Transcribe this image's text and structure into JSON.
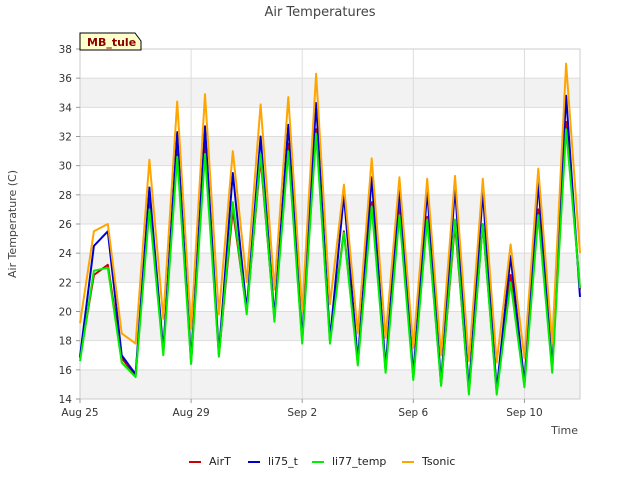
{
  "chart_data": {
    "type": "line",
    "title": "Air Temperatures",
    "xlabel": "Time",
    "ylabel": "Air Temperature (C)",
    "site_label": "MB_tule",
    "x_ticks": [
      "Aug 25",
      "Aug 29",
      "Sep 2",
      "Sep 6",
      "Sep 10"
    ],
    "y_ticks": [
      14,
      16,
      18,
      20,
      22,
      24,
      26,
      28,
      30,
      32,
      34,
      36,
      38
    ],
    "xlim": [
      "2024-08-25",
      "2024-09-12"
    ],
    "ylim": [
      14,
      38
    ],
    "grid": true,
    "legend_position": "bottom",
    "colors": {
      "AirT": "#cc0000",
      "li75_t": "#0000cc",
      "li77_temp": "#00ee00",
      "Tsonic": "#ffa500"
    },
    "series": [
      {
        "name": "AirT",
        "points": [
          [
            "2024-08-25",
            16.8
          ],
          [
            "2024-08-25T12:00",
            22.5
          ],
          [
            "2024-08-26",
            23.2
          ],
          [
            "2024-08-26T12:00",
            16.8
          ],
          [
            "2024-08-27",
            15.6
          ],
          [
            "2024-08-27T12:00",
            27.5
          ],
          [
            "2024-08-28",
            17.2
          ],
          [
            "2024-08-28T12:00",
            31.5
          ],
          [
            "2024-08-29",
            16.5
          ],
          [
            "2024-08-29T12:00",
            31.5
          ],
          [
            "2024-08-30",
            17.0
          ],
          [
            "2024-08-30T12:00",
            27.0
          ],
          [
            "2024-08-31",
            20.0
          ],
          [
            "2024-08-31T12:00",
            30.5
          ],
          [
            "2024-09-01",
            19.5
          ],
          [
            "2024-09-01T12:00",
            31.5
          ],
          [
            "2024-09-02",
            18.0
          ],
          [
            "2024-09-02T12:00",
            32.5
          ],
          [
            "2024-09-03",
            18.0
          ],
          [
            "2024-09-03T12:00",
            25.5
          ],
          [
            "2024-09-04",
            16.5
          ],
          [
            "2024-09-04T12:00",
            27.5
          ],
          [
            "2024-09-05",
            16.0
          ],
          [
            "2024-09-05T12:00",
            27.5
          ],
          [
            "2024-09-06",
            15.5
          ],
          [
            "2024-09-06T12:00",
            26.5
          ],
          [
            "2024-09-07",
            15.0
          ],
          [
            "2024-09-07T12:00",
            26.0
          ],
          [
            "2024-09-08",
            14.5
          ],
          [
            "2024-09-08T12:00",
            26.0
          ],
          [
            "2024-09-09",
            14.5
          ],
          [
            "2024-09-09T12:00",
            22.5
          ],
          [
            "2024-09-10",
            15.0
          ],
          [
            "2024-09-10T12:00",
            27.0
          ],
          [
            "2024-09-11",
            16.0
          ],
          [
            "2024-09-11T12:00",
            33.0
          ],
          [
            "2024-09-12",
            21.5
          ]
        ]
      },
      {
        "name": "li75_t",
        "points": [
          [
            "2024-08-25",
            16.9
          ],
          [
            "2024-08-25T12:00",
            24.5
          ],
          [
            "2024-08-26",
            25.5
          ],
          [
            "2024-08-26T12:00",
            17.0
          ],
          [
            "2024-08-27",
            15.7
          ],
          [
            "2024-08-27T12:00",
            28.5
          ],
          [
            "2024-08-28",
            17.3
          ],
          [
            "2024-08-28T12:00",
            32.3
          ],
          [
            "2024-08-29",
            16.6
          ],
          [
            "2024-08-29T12:00",
            32.7
          ],
          [
            "2024-08-30",
            17.1
          ],
          [
            "2024-08-30T12:00",
            29.5
          ],
          [
            "2024-08-31",
            20.1
          ],
          [
            "2024-08-31T12:00",
            32.0
          ],
          [
            "2024-09-01",
            19.6
          ],
          [
            "2024-09-01T12:00",
            32.8
          ],
          [
            "2024-09-02",
            18.1
          ],
          [
            "2024-09-02T12:00",
            34.3
          ],
          [
            "2024-09-03",
            18.1
          ],
          [
            "2024-09-03T12:00",
            28.0
          ],
          [
            "2024-09-04",
            16.6
          ],
          [
            "2024-09-04T12:00",
            29.2
          ],
          [
            "2024-09-05",
            16.1
          ],
          [
            "2024-09-05T12:00",
            28.5
          ],
          [
            "2024-09-06",
            15.6
          ],
          [
            "2024-09-06T12:00",
            28.3
          ],
          [
            "2024-09-07",
            15.1
          ],
          [
            "2024-09-07T12:00",
            28.5
          ],
          [
            "2024-09-08",
            14.6
          ],
          [
            "2024-09-08T12:00",
            28.2
          ],
          [
            "2024-09-09",
            14.6
          ],
          [
            "2024-09-09T12:00",
            23.8
          ],
          [
            "2024-09-10",
            15.1
          ],
          [
            "2024-09-10T12:00",
            28.8
          ],
          [
            "2024-09-11",
            16.1
          ],
          [
            "2024-09-11T12:00",
            34.8
          ],
          [
            "2024-09-12",
            21.0
          ]
        ]
      },
      {
        "name": "li77_temp",
        "points": [
          [
            "2024-08-25",
            16.6
          ],
          [
            "2024-08-25T12:00",
            22.8
          ],
          [
            "2024-08-26",
            23.0
          ],
          [
            "2024-08-26T12:00",
            16.5
          ],
          [
            "2024-08-27",
            15.5
          ],
          [
            "2024-08-27T12:00",
            27.0
          ],
          [
            "2024-08-28",
            17.0
          ],
          [
            "2024-08-28T12:00",
            30.6
          ],
          [
            "2024-08-29",
            16.4
          ],
          [
            "2024-08-29T12:00",
            30.8
          ],
          [
            "2024-08-30",
            16.9
          ],
          [
            "2024-08-30T12:00",
            27.5
          ],
          [
            "2024-08-31",
            19.8
          ],
          [
            "2024-08-31T12:00",
            30.8
          ],
          [
            "2024-09-01",
            19.3
          ],
          [
            "2024-09-01T12:00",
            31.0
          ],
          [
            "2024-09-02",
            17.8
          ],
          [
            "2024-09-02T12:00",
            32.2
          ],
          [
            "2024-09-03",
            17.8
          ],
          [
            "2024-09-03T12:00",
            25.4
          ],
          [
            "2024-09-04",
            16.3
          ],
          [
            "2024-09-04T12:00",
            27.2
          ],
          [
            "2024-09-05",
            15.8
          ],
          [
            "2024-09-05T12:00",
            26.6
          ],
          [
            "2024-09-06",
            15.3
          ],
          [
            "2024-09-06T12:00",
            26.3
          ],
          [
            "2024-09-07",
            14.9
          ],
          [
            "2024-09-07T12:00",
            26.3
          ],
          [
            "2024-09-08",
            14.3
          ],
          [
            "2024-09-08T12:00",
            26.0
          ],
          [
            "2024-09-09",
            14.3
          ],
          [
            "2024-09-09T12:00",
            22.0
          ],
          [
            "2024-09-10",
            14.8
          ],
          [
            "2024-09-10T12:00",
            26.6
          ],
          [
            "2024-09-11",
            15.8
          ],
          [
            "2024-09-11T12:00",
            32.5
          ],
          [
            "2024-09-12",
            21.6
          ]
        ]
      },
      {
        "name": "Tsonic",
        "points": [
          [
            "2024-08-25",
            19.2
          ],
          [
            "2024-08-25T12:00",
            25.5
          ],
          [
            "2024-08-26",
            26.0
          ],
          [
            "2024-08-26T12:00",
            18.5
          ],
          [
            "2024-08-27",
            17.8
          ],
          [
            "2024-08-27T12:00",
            30.4
          ],
          [
            "2024-08-28",
            19.5
          ],
          [
            "2024-08-28T12:00",
            34.4
          ],
          [
            "2024-08-29",
            18.8
          ],
          [
            "2024-08-29T12:00",
            34.9
          ],
          [
            "2024-08-30",
            19.8
          ],
          [
            "2024-08-30T12:00",
            31.0
          ],
          [
            "2024-08-31",
            22.0
          ],
          [
            "2024-08-31T12:00",
            34.2
          ],
          [
            "2024-09-01",
            21.5
          ],
          [
            "2024-09-01T12:00",
            34.7
          ],
          [
            "2024-09-02",
            20.0
          ],
          [
            "2024-09-02T12:00",
            36.3
          ],
          [
            "2024-09-03",
            20.5
          ],
          [
            "2024-09-03T12:00",
            28.7
          ],
          [
            "2024-09-04",
            18.5
          ],
          [
            "2024-09-04T12:00",
            30.5
          ],
          [
            "2024-09-05",
            18.2
          ],
          [
            "2024-09-05T12:00",
            29.2
          ],
          [
            "2024-09-06",
            17.5
          ],
          [
            "2024-09-06T12:00",
            29.1
          ],
          [
            "2024-09-07",
            17.0
          ],
          [
            "2024-09-07T12:00",
            29.3
          ],
          [
            "2024-09-08",
            16.6
          ],
          [
            "2024-09-08T12:00",
            29.1
          ],
          [
            "2024-09-09",
            16.5
          ],
          [
            "2024-09-09T12:00",
            24.6
          ],
          [
            "2024-09-10",
            16.8
          ],
          [
            "2024-09-10T12:00",
            29.8
          ],
          [
            "2024-09-11",
            17.8
          ],
          [
            "2024-09-11T12:00",
            37.0
          ],
          [
            "2024-09-12",
            24.0
          ]
        ]
      }
    ]
  }
}
